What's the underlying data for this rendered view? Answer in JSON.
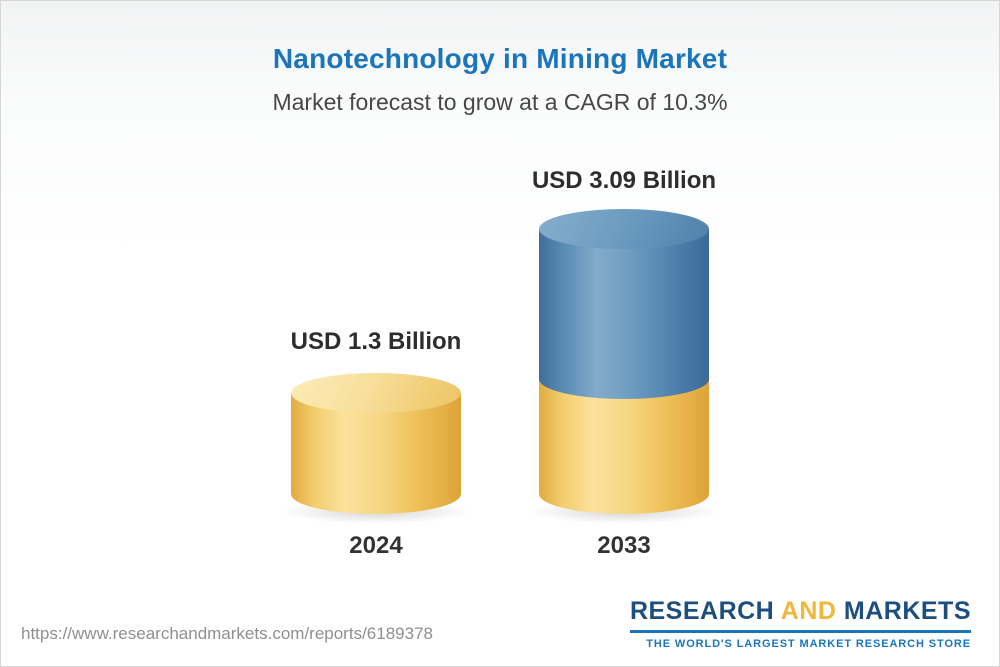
{
  "header": {
    "title": "Nanotechnology in Mining Market",
    "subtitle": "Market forecast to grow at a CAGR of 10.3%"
  },
  "chart_data": {
    "type": "bar",
    "title": "Nanotechnology in Mining Market",
    "subtitle": "Market forecast to grow at a CAGR of 10.3%",
    "units": "USD Billion",
    "cagr": "10.3%",
    "categories": [
      "2024",
      "2033"
    ],
    "values": [
      1.3,
      3.09
    ],
    "value_labels": [
      "USD 1.3 Billion",
      "USD 3.09 Billion"
    ],
    "legend": "off",
    "grid": "off",
    "colors": {
      "bar_gold": "#F2CB66",
      "bar_blue": "#5C8EB6",
      "title_blue": "#1B75BC"
    }
  },
  "footer": {
    "url": "https://www.researchandmarkets.com/reports/6189378",
    "logo": {
      "word1": "RESEARCH",
      "word2": "AND",
      "word3": "MARKETS",
      "tagline": "THE WORLD'S LARGEST MARKET RESEARCH STORE"
    }
  }
}
